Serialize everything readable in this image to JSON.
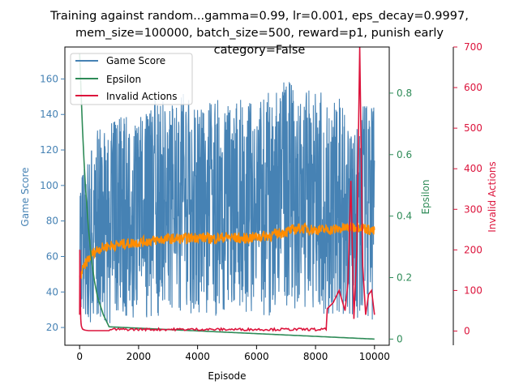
{
  "chart_data": {
    "type": "line",
    "title_lines": [
      "Training against random...gamma=0.99, lr=0.001, eps_decay=0.9997,",
      "mem_size=100000, batch_size=500, reward=p1, punish early",
      "category=False"
    ],
    "xlabel": "Episode",
    "xlim": [
      -500,
      10500
    ],
    "xticks": [
      0,
      2000,
      4000,
      6000,
      8000,
      10000
    ],
    "grid": false,
    "legend": {
      "position": "top-left",
      "entries": [
        "Game Score",
        "Epsilon",
        "Invalid Actions"
      ]
    },
    "colors": {
      "game_score": "#4682b4",
      "game_score_avg": "#ff8c00",
      "epsilon": "#2e8b57",
      "invalid": "#dc143c"
    },
    "axes": {
      "left": {
        "label": "Game Score",
        "ylim": [
          10,
          178
        ],
        "ticks": [
          20,
          40,
          60,
          80,
          100,
          120,
          140,
          160
        ],
        "color": "#4682b4"
      },
      "right1": {
        "label": "Epsilon",
        "ylim": [
          -0.02,
          0.95
        ],
        "ticks": [
          0.0,
          0.2,
          0.4,
          0.6,
          0.8
        ],
        "color": "#2e8b57"
      },
      "right2": {
        "label": "Invalid Actions",
        "ylim": [
          -35,
          700
        ],
        "ticks": [
          0,
          100,
          200,
          300,
          400,
          500,
          600,
          700
        ],
        "color": "#dc143c"
      }
    },
    "series": [
      {
        "name": "Game Score",
        "axis": "left",
        "x": [
          0,
          500,
          1000,
          1500,
          2000,
          2500,
          3000,
          3500,
          4000,
          4500,
          5000,
          5500,
          6000,
          6500,
          7000,
          7500,
          8000,
          8500,
          9000,
          9500,
          10000
        ],
        "high": [
          103,
          130,
          136,
          142,
          140,
          152,
          145,
          154,
          147,
          149,
          150,
          148,
          147,
          155,
          160,
          153,
          155,
          150,
          156,
          148,
          150
        ],
        "low": [
          25,
          22,
          22,
          24,
          26,
          25,
          27,
          28,
          26,
          25,
          30,
          28,
          27,
          25,
          30,
          28,
          27,
          26,
          27,
          25,
          24
        ]
      },
      {
        "name": "",
        "axis": "left",
        "x": [
          0,
          100,
          200,
          400,
          600,
          800,
          1000,
          1500,
          2000,
          2500,
          3000,
          3500,
          4000,
          4500,
          5000,
          5500,
          6000,
          6500,
          7000,
          7500,
          8000,
          8500,
          9000,
          9500,
          10000
        ],
        "values": [
          48,
          52,
          56,
          61,
          64,
          65,
          66,
          67,
          68,
          69,
          70,
          70,
          71,
          70,
          71,
          70,
          71,
          72,
          74,
          76,
          75,
          75,
          76,
          77,
          74
        ]
      },
      {
        "name": "Epsilon",
        "axis": "right1",
        "x": [
          0,
          50,
          100,
          150,
          200,
          300,
          400,
          500,
          600,
          800,
          1000,
          10000
        ],
        "values": [
          0.93,
          0.8,
          0.68,
          0.58,
          0.49,
          0.36,
          0.26,
          0.19,
          0.14,
          0.08,
          0.04,
          0.0
        ]
      },
      {
        "name": "Invalid Actions",
        "axis": "right2",
        "x": [
          0,
          10,
          20,
          30,
          40,
          50,
          60,
          80,
          100,
          150,
          200,
          300,
          1000,
          8000,
          8400,
          8600,
          8800,
          9000,
          9100,
          9200,
          9300,
          9400,
          9500,
          9600,
          9700,
          9800,
          9900,
          10000
        ],
        "values": [
          40,
          200,
          120,
          60,
          30,
          18,
          12,
          8,
          5,
          3,
          2,
          1,
          1,
          1,
          55,
          70,
          100,
          50,
          120,
          370,
          30,
          200,
          700,
          160,
          40,
          90,
          100,
          40
        ]
      }
    ]
  }
}
